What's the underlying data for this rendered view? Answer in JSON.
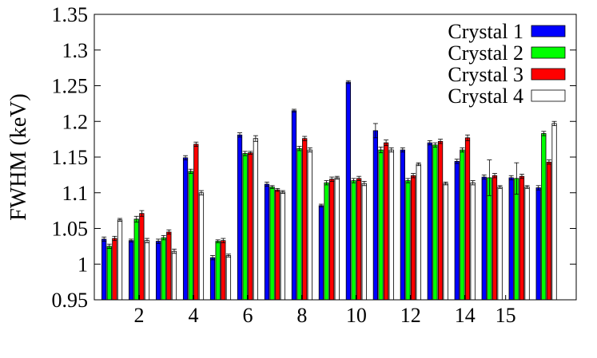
{
  "chart_data": {
    "type": "bar",
    "ylabel": "FWHM (keV)",
    "xlabel": "",
    "ylim": [
      0.95,
      1.35
    ],
    "yticks": [
      "0.95",
      "1",
      "1.05",
      "1.1",
      "1.15",
      "1.2",
      "1.25",
      "1.3",
      "1.35"
    ],
    "ytick_values": [
      0.95,
      1.0,
      1.05,
      1.1,
      1.15,
      1.2,
      1.25,
      1.3,
      1.35
    ],
    "group_count": 17,
    "xtick_labels": [
      {
        "group": 2,
        "label": "2"
      },
      {
        "group": 4,
        "label": "4"
      },
      {
        "group": 6,
        "label": "6"
      },
      {
        "group": 8,
        "label": "8"
      },
      {
        "group": 10,
        "label": "10"
      },
      {
        "group": 12,
        "label": "12"
      },
      {
        "group": 14,
        "label": "14"
      },
      {
        "group": 15.5,
        "label": "15"
      }
    ],
    "legend_position": "top-right",
    "grid": false,
    "series": [
      {
        "name": "Crystal 1",
        "color": "#0000ff",
        "values": [
          1.035,
          1.033,
          1.032,
          1.149,
          1.009,
          1.181,
          1.112,
          1.215,
          1.082,
          1.255,
          1.187,
          1.16,
          1.17,
          1.144,
          1.122,
          1.121,
          1.107
        ],
        "errors": [
          0.003,
          0.002,
          0.003,
          0.003,
          0.003,
          0.003,
          0.003,
          0.002,
          0.002,
          0.002,
          0.01,
          0.003,
          0.003,
          0.003,
          0.003,
          0.003,
          0.003
        ]
      },
      {
        "name": "Crystal 2",
        "color": "#00ff00",
        "values": [
          1.025,
          1.063,
          1.037,
          1.13,
          1.032,
          1.155,
          1.108,
          1.162,
          1.114,
          1.117,
          1.16,
          1.117,
          1.167,
          1.16,
          1.121,
          1.12,
          1.183
        ],
        "errors": [
          0.003,
          0.004,
          0.003,
          0.003,
          0.002,
          0.003,
          0.002,
          0.003,
          0.003,
          0.003,
          0.004,
          0.003,
          0.003,
          0.003,
          0.025,
          0.022,
          0.003
        ]
      },
      {
        "name": "Crystal 3",
        "color": "#ff0000",
        "values": [
          1.036,
          1.071,
          1.045,
          1.168,
          1.033,
          1.156,
          1.104,
          1.176,
          1.119,
          1.12,
          1.17,
          1.124,
          1.172,
          1.177,
          1.124,
          1.123,
          1.143
        ],
        "errors": [
          0.003,
          0.004,
          0.003,
          0.003,
          0.003,
          0.002,
          0.002,
          0.003,
          0.003,
          0.003,
          0.004,
          0.003,
          0.003,
          0.004,
          0.003,
          0.003,
          0.003
        ]
      },
      {
        "name": "Crystal 4",
        "color": "#ffffff",
        "values": [
          1.062,
          1.033,
          1.018,
          1.1,
          1.012,
          1.176,
          1.101,
          1.16,
          1.121,
          1.113,
          1.16,
          1.14,
          1.113,
          1.114,
          1.108,
          1.108,
          1.197
        ],
        "errors": [
          0.002,
          0.003,
          0.003,
          0.003,
          0.002,
          0.004,
          0.002,
          0.003,
          0.002,
          0.003,
          0.003,
          0.002,
          0.002,
          0.003,
          0.002,
          0.002,
          0.003
        ]
      }
    ]
  }
}
